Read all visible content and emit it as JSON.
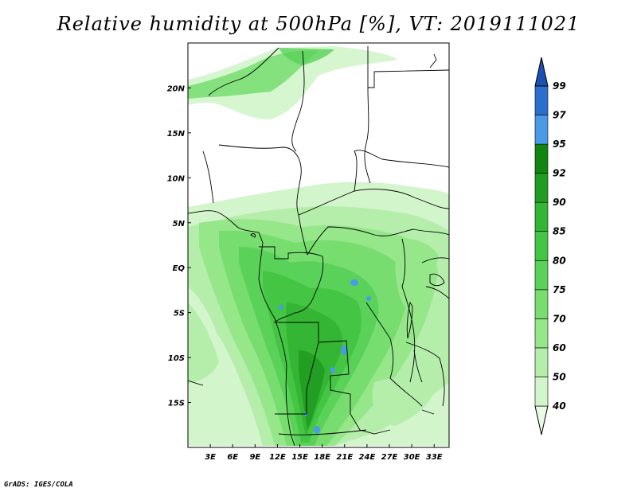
{
  "title": "Relative humidity at 500hPa [%], VT: 2019111021",
  "credit": "GrADS: IGES/COLA",
  "map": {
    "lon_range": [
      0,
      35
    ],
    "lat_range": [
      -20,
      25
    ],
    "lon_ticks": [
      "3E",
      "6E",
      "9E",
      "12E",
      "15E",
      "18E",
      "21E",
      "24E",
      "27E",
      "30E",
      "33E"
    ],
    "lat_ticks": [
      "20N",
      "15N",
      "10N",
      "5N",
      "EQ",
      "5S",
      "10S",
      "15S"
    ]
  },
  "colorbar": {
    "levels": [
      "40",
      "50",
      "60",
      "70",
      "75",
      "80",
      "85",
      "90",
      "92",
      "95",
      "97",
      "99"
    ],
    "colors": [
      "#e9fbe5",
      "#d2f5cb",
      "#b4eeaa",
      "#96e68a",
      "#76dd6e",
      "#5ad25a",
      "#44c644",
      "#34b534",
      "#209c20",
      "#108510",
      "#4a9ae6",
      "#2a6fd0",
      "#1c4fb4"
    ]
  }
}
